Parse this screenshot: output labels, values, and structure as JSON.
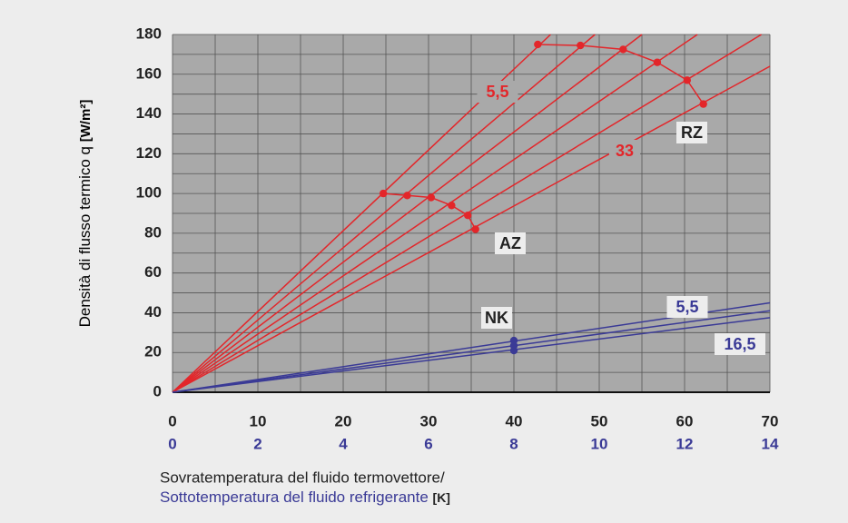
{
  "chart_data": {
    "type": "line",
    "ylabel": "Densità di flusso termico q",
    "ylabel_unit": "[W/m²]",
    "xlabel": "Sovratemperatura del fluido termovettore/",
    "x2label": "Sottotemperatura del fluido refrigerante",
    "xlabel_unit": "[K]",
    "xlim": [
      0,
      70
    ],
    "xticks": [
      0,
      10,
      20,
      30,
      40,
      50,
      60,
      70
    ],
    "xminorticks": [
      5,
      15,
      25,
      35,
      45,
      55,
      65
    ],
    "x2lim": [
      0,
      14
    ],
    "x2ticks": [
      0,
      2,
      4,
      6,
      8,
      10,
      12,
      14
    ],
    "ylim": [
      0,
      180
    ],
    "yticks": [
      0,
      20,
      40,
      60,
      80,
      100,
      120,
      140,
      160,
      180
    ],
    "yminorticks": [
      10,
      30,
      50,
      70,
      90,
      110,
      130,
      150,
      170
    ],
    "grid": true,
    "series": [
      {
        "color": "#e3262a",
        "x": [
          0,
          44.3
        ],
        "values": [
          0,
          180
        ]
      },
      {
        "color": "#e3262a",
        "x": [
          0,
          49.5
        ],
        "values": [
          0,
          180
        ]
      },
      {
        "color": "#e3262a",
        "x": [
          0,
          55
        ],
        "values": [
          0,
          180
        ]
      },
      {
        "color": "#e3262a",
        "x": [
          0,
          61.5
        ],
        "values": [
          0,
          180
        ]
      },
      {
        "color": "#e3262a",
        "x": [
          0,
          69
        ],
        "values": [
          0,
          180
        ]
      },
      {
        "color": "#e3262a",
        "x": [
          0,
          70
        ],
        "values": [
          0,
          164
        ]
      },
      {
        "color": "#e3262a",
        "markers": true,
        "x": [
          24.7,
          27.5,
          30.3,
          32.7,
          34.6,
          35.5
        ],
        "values": [
          100,
          99,
          98,
          94,
          89,
          82
        ]
      },
      {
        "color": "#e3262a",
        "markers": true,
        "x": [
          42.8,
          47.8,
          52.8,
          56.8,
          60.3,
          62.2
        ],
        "values": [
          175,
          174.5,
          172.5,
          166,
          157,
          145
        ]
      },
      {
        "color": "#3a3a96",
        "axis": "x2",
        "x": [
          0,
          14
        ],
        "values": [
          0,
          45
        ]
      },
      {
        "color": "#3a3a96",
        "axis": "x2",
        "x": [
          0,
          14
        ],
        "values": [
          0,
          41
        ]
      },
      {
        "color": "#3a3a96",
        "axis": "x2",
        "x": [
          0,
          14
        ],
        "values": [
          0,
          37.5
        ]
      },
      {
        "color": "#3a3a96",
        "axis": "x2",
        "markers": true,
        "x": [
          8,
          8,
          8
        ],
        "values": [
          26,
          23.5,
          21
        ]
      }
    ],
    "annotations": [
      {
        "text": "5,5",
        "color": "#e3262a"
      },
      {
        "text": "33",
        "color": "#e3262a"
      },
      {
        "text": "RZ",
        "color": "#222222"
      },
      {
        "text": "AZ",
        "color": "#222222"
      },
      {
        "text": "NK",
        "color": "#222222"
      },
      {
        "text": "5,5",
        "color": "#3a3a96"
      },
      {
        "text": "16,5",
        "color": "#3a3a96"
      }
    ]
  }
}
